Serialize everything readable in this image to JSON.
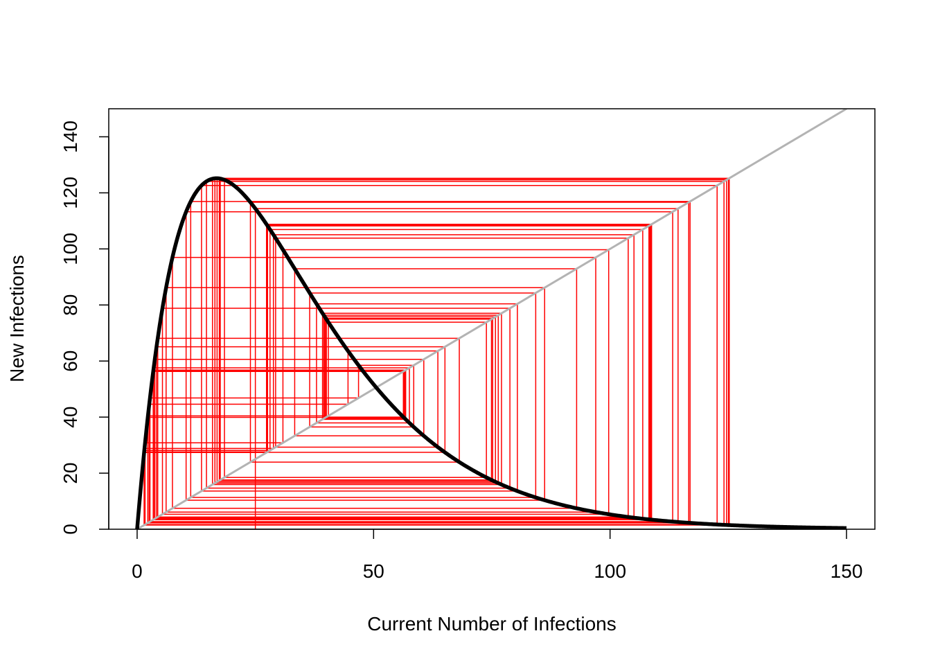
{
  "chart_data": {
    "type": "line",
    "title": "",
    "xlabel": "Current Number of Infections",
    "ylabel": "New Infections",
    "xlim": [
      -6,
      156
    ],
    "ylim": [
      0,
      150
    ],
    "x_ticks": [
      0,
      50,
      100,
      150
    ],
    "y_ticks": [
      0,
      20,
      40,
      60,
      80,
      100,
      120,
      140
    ],
    "x_tick_labels": [
      "0",
      "50",
      "100",
      "150"
    ],
    "y_tick_labels": [
      "0",
      "20",
      "40",
      "60",
      "80",
      "100",
      "120",
      "140"
    ],
    "grid": false,
    "legend": "none",
    "series": [
      {
        "kind": "curve",
        "color": "#000000",
        "model": "y = a * x * exp(-b * x)",
        "params": {
          "a": 20.25,
          "b": 0.0595
        },
        "x_range": [
          0,
          150
        ]
      },
      {
        "kind": "diagonal",
        "color": "#b3b3b3",
        "model": "y = x",
        "x_range": [
          0,
          150
        ]
      },
      {
        "kind": "cobweb",
        "color": "#ff0000",
        "x0": 25,
        "iterations": 100
      }
    ]
  }
}
